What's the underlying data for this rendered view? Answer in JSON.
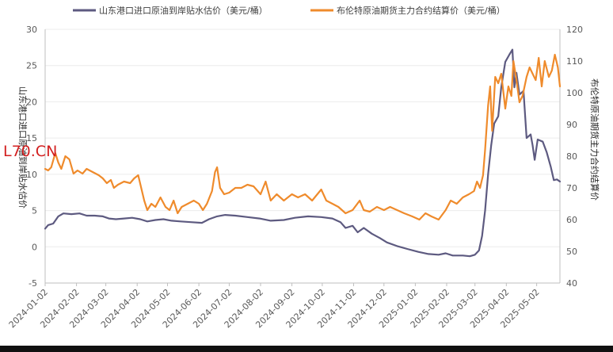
{
  "chart_data": {
    "type": "line",
    "watermark": "L70.CN",
    "colors": {
      "series1": "#5d5a80",
      "series2": "#ef8b2c",
      "grid": "#ececec",
      "axis": "#bfbfbf"
    },
    "left_axis": {
      "title": "山东港口进口原油到岸贴水估价",
      "min": -5,
      "max": 30,
      "ticks": [
        "-5",
        "0",
        "5",
        "10",
        "15",
        "20",
        "25",
        "30"
      ]
    },
    "right_axis": {
      "title": "布伦特原油期货主力合约结算价",
      "min": 40,
      "max": 120,
      "ticks": [
        "40",
        "50",
        "60",
        "70",
        "80",
        "90",
        "100",
        "110",
        "120"
      ]
    },
    "x_ticks": [
      "2024-01-02",
      "2024-02-02",
      "2024-03-02",
      "2024-04-02",
      "2024-05-02",
      "2024-06-02",
      "2024-07-02",
      "2024-08-02",
      "2024-09-02",
      "2024-10-02",
      "2024-11-02",
      "2024-12-02",
      "2025-01-02",
      "2025-02-02",
      "2025-03-02",
      "2025-04-02",
      "2025-05-02"
    ],
    "x_range": [
      "2024-01-02",
      "2025-05-25"
    ],
    "series": [
      {
        "name": "山东港口进口原油到岸贴水估价（美元/桶）",
        "axis": "left",
        "points": [
          [
            "2024-01-02",
            2.5
          ],
          [
            "2024-01-05",
            3.0
          ],
          [
            "2024-01-10",
            3.2
          ],
          [
            "2024-01-15",
            4.2
          ],
          [
            "2024-01-20",
            4.6
          ],
          [
            "2024-01-28",
            4.5
          ],
          [
            "2024-02-05",
            4.6
          ],
          [
            "2024-02-12",
            4.3
          ],
          [
            "2024-02-20",
            4.3
          ],
          [
            "2024-02-28",
            4.2
          ],
          [
            "2024-03-05",
            3.9
          ],
          [
            "2024-03-12",
            3.8
          ],
          [
            "2024-03-20",
            3.9
          ],
          [
            "2024-03-28",
            4.0
          ],
          [
            "2024-04-05",
            3.8
          ],
          [
            "2024-04-12",
            3.5
          ],
          [
            "2024-04-20",
            3.7
          ],
          [
            "2024-04-28",
            3.8
          ],
          [
            "2024-05-06",
            3.6
          ],
          [
            "2024-05-15",
            3.5
          ],
          [
            "2024-05-25",
            3.4
          ],
          [
            "2024-06-05",
            3.3
          ],
          [
            "2024-06-12",
            3.8
          ],
          [
            "2024-06-20",
            4.2
          ],
          [
            "2024-06-28",
            4.4
          ],
          [
            "2024-07-08",
            4.3
          ],
          [
            "2024-07-20",
            4.1
          ],
          [
            "2024-08-01",
            3.9
          ],
          [
            "2024-08-12",
            3.6
          ],
          [
            "2024-08-25",
            3.7
          ],
          [
            "2024-09-05",
            4.0
          ],
          [
            "2024-09-18",
            4.2
          ],
          [
            "2024-10-01",
            4.1
          ],
          [
            "2024-10-12",
            3.9
          ],
          [
            "2024-10-20",
            3.4
          ],
          [
            "2024-10-25",
            2.6
          ],
          [
            "2024-11-01",
            2.9
          ],
          [
            "2024-11-06",
            2.0
          ],
          [
            "2024-11-12",
            2.6
          ],
          [
            "2024-11-20",
            1.8
          ],
          [
            "2024-11-28",
            1.2
          ],
          [
            "2024-12-05",
            0.6
          ],
          [
            "2024-12-15",
            0.1
          ],
          [
            "2024-12-25",
            -0.3
          ],
          [
            "2025-01-05",
            -0.7
          ],
          [
            "2025-01-15",
            -1.0
          ],
          [
            "2025-01-25",
            -1.1
          ],
          [
            "2025-02-01",
            -0.9
          ],
          [
            "2025-02-08",
            -1.2
          ],
          [
            "2025-02-18",
            -1.2
          ],
          [
            "2025-02-25",
            -1.3
          ],
          [
            "2025-03-02",
            -1.1
          ],
          [
            "2025-03-06",
            -0.5
          ],
          [
            "2025-03-09",
            1.5
          ],
          [
            "2025-03-12",
            5.0
          ],
          [
            "2025-03-15",
            10.0
          ],
          [
            "2025-03-18",
            14.0
          ],
          [
            "2025-03-21",
            17.0
          ],
          [
            "2025-03-25",
            18.0
          ],
          [
            "2025-03-28",
            22.0
          ],
          [
            "2025-04-01",
            25.5
          ],
          [
            "2025-04-05",
            26.5
          ],
          [
            "2025-04-08",
            27.2
          ],
          [
            "2025-04-10",
            22.0
          ],
          [
            "2025-04-12",
            24.0
          ],
          [
            "2025-04-15",
            21.0
          ],
          [
            "2025-04-19",
            21.5
          ],
          [
            "2025-04-22",
            15.0
          ],
          [
            "2025-04-26",
            15.5
          ],
          [
            "2025-04-28",
            14.0
          ],
          [
            "2025-04-30",
            12.0
          ],
          [
            "2025-05-03",
            14.8
          ],
          [
            "2025-05-08",
            14.5
          ],
          [
            "2025-05-12",
            13.0
          ],
          [
            "2025-05-16",
            11.0
          ],
          [
            "2025-05-19",
            9.2
          ],
          [
            "2025-05-22",
            9.3
          ],
          [
            "2025-05-25",
            9.0
          ]
        ]
      },
      {
        "name": "布伦特原油期货主力合约结算价（美元/桶）",
        "axis": "right",
        "points": [
          [
            "2024-01-02",
            76
          ],
          [
            "2024-01-05",
            75.5
          ],
          [
            "2024-01-08",
            76.5
          ],
          [
            "2024-01-12",
            81
          ],
          [
            "2024-01-15",
            78
          ],
          [
            "2024-01-18",
            76
          ],
          [
            "2024-01-22",
            80
          ],
          [
            "2024-01-26",
            79
          ],
          [
            "2024-01-30",
            74.5
          ],
          [
            "2024-02-03",
            75.5
          ],
          [
            "2024-02-08",
            74.5
          ],
          [
            "2024-02-12",
            76
          ],
          [
            "2024-02-18",
            75
          ],
          [
            "2024-02-24",
            74
          ],
          [
            "2024-02-28",
            73
          ],
          [
            "2024-03-03",
            71.5
          ],
          [
            "2024-03-07",
            72.5
          ],
          [
            "2024-03-10",
            70
          ],
          [
            "2024-03-14",
            71
          ],
          [
            "2024-03-20",
            72
          ],
          [
            "2024-03-26",
            71.5
          ],
          [
            "2024-03-30",
            73
          ],
          [
            "2024-04-03",
            74
          ],
          [
            "2024-04-06",
            70
          ],
          [
            "2024-04-09",
            66
          ],
          [
            "2024-04-12",
            63
          ],
          [
            "2024-04-16",
            65
          ],
          [
            "2024-04-20",
            64
          ],
          [
            "2024-04-25",
            67
          ],
          [
            "2024-04-30",
            64
          ],
          [
            "2024-05-04",
            63
          ],
          [
            "2024-05-08",
            66
          ],
          [
            "2024-05-12",
            62
          ],
          [
            "2024-05-16",
            64
          ],
          [
            "2024-05-22",
            65
          ],
          [
            "2024-05-28",
            66
          ],
          [
            "2024-06-02",
            65
          ],
          [
            "2024-06-06",
            63
          ],
          [
            "2024-06-10",
            65
          ],
          [
            "2024-06-15",
            69
          ],
          [
            "2024-06-18",
            75
          ],
          [
            "2024-06-20",
            76.5
          ],
          [
            "2024-06-23",
            70
          ],
          [
            "2024-06-27",
            68
          ],
          [
            "2024-07-02",
            68.5
          ],
          [
            "2024-07-08",
            70
          ],
          [
            "2024-07-14",
            70
          ],
          [
            "2024-07-20",
            71
          ],
          [
            "2024-07-26",
            70.5
          ],
          [
            "2024-08-02",
            68
          ],
          [
            "2024-08-07",
            72
          ],
          [
            "2024-08-12",
            66
          ],
          [
            "2024-08-18",
            68
          ],
          [
            "2024-08-25",
            66
          ],
          [
            "2024-09-02",
            68
          ],
          [
            "2024-09-08",
            67
          ],
          [
            "2024-09-15",
            68
          ],
          [
            "2024-09-22",
            66
          ],
          [
            "2024-10-01",
            69.5
          ],
          [
            "2024-10-06",
            66
          ],
          [
            "2024-10-12",
            65
          ],
          [
            "2024-10-18",
            64
          ],
          [
            "2024-10-25",
            62
          ],
          [
            "2024-11-01",
            63
          ],
          [
            "2024-11-08",
            66
          ],
          [
            "2024-11-12",
            63
          ],
          [
            "2024-11-18",
            62.5
          ],
          [
            "2024-11-25",
            64
          ],
          [
            "2024-12-02",
            63
          ],
          [
            "2024-12-08",
            64
          ],
          [
            "2024-12-15",
            63
          ],
          [
            "2024-12-22",
            62
          ],
          [
            "2024-12-30",
            61
          ],
          [
            "2025-01-06",
            60
          ],
          [
            "2025-01-12",
            62
          ],
          [
            "2025-01-18",
            61
          ],
          [
            "2025-01-25",
            60
          ],
          [
            "2025-02-01",
            63
          ],
          [
            "2025-02-06",
            66
          ],
          [
            "2025-02-12",
            65
          ],
          [
            "2025-02-18",
            67
          ],
          [
            "2025-02-24",
            68
          ],
          [
            "2025-03-01",
            69
          ],
          [
            "2025-03-04",
            72
          ],
          [
            "2025-03-07",
            70
          ],
          [
            "2025-03-10",
            74
          ],
          [
            "2025-03-12",
            82
          ],
          [
            "2025-03-15",
            96
          ],
          [
            "2025-03-17",
            102
          ],
          [
            "2025-03-19",
            88
          ],
          [
            "2025-03-22",
            105
          ],
          [
            "2025-03-25",
            103
          ],
          [
            "2025-03-28",
            106
          ],
          [
            "2025-04-01",
            95
          ],
          [
            "2025-04-04",
            102
          ],
          [
            "2025-04-07",
            99
          ],
          [
            "2025-04-09",
            110
          ],
          [
            "2025-04-12",
            104
          ],
          [
            "2025-04-15",
            97
          ],
          [
            "2025-04-18",
            99
          ],
          [
            "2025-04-22",
            105
          ],
          [
            "2025-04-25",
            108
          ],
          [
            "2025-04-28",
            106
          ],
          [
            "2025-05-01",
            104
          ],
          [
            "2025-05-04",
            111
          ],
          [
            "2025-05-07",
            102
          ],
          [
            "2025-05-10",
            110
          ],
          [
            "2025-05-14",
            105
          ],
          [
            "2025-05-17",
            107
          ],
          [
            "2025-05-20",
            112
          ],
          [
            "2025-05-23",
            108
          ],
          [
            "2025-05-25",
            102
          ]
        ]
      }
    ]
  }
}
